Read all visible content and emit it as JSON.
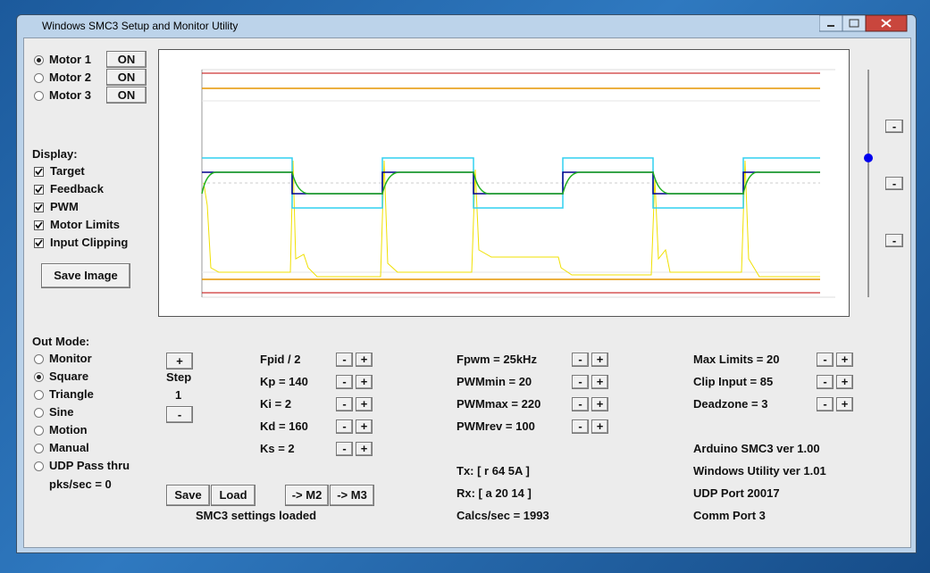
{
  "window": {
    "title": "Windows SMC3 Setup and Monitor Utility"
  },
  "motors": {
    "labels": [
      "Motor 1",
      "Motor 2",
      "Motor 3"
    ],
    "button": "ON",
    "selected": 0
  },
  "display": {
    "heading": "Display:",
    "options": [
      "Target",
      "Feedback",
      "PWM",
      "Motor Limits",
      "Input Clipping"
    ],
    "checked": true,
    "save_button": "Save Image"
  },
  "out_mode": {
    "heading": "Out Mode:",
    "options": [
      "Monitor",
      "Square",
      "Triangle",
      "Sine",
      "Motion",
      "Manual",
      "UDP Pass thru"
    ],
    "selected": 1,
    "rate": "pks/sec = 0"
  },
  "step": {
    "label": "Step",
    "value": 1
  },
  "buttons": {
    "dec": "-",
    "inc": "+"
  },
  "pid": [
    "Fpid / 2",
    "Kp = 140",
    "Ki = 2",
    "Kd = 160",
    "Ks = 2"
  ],
  "pwm": [
    "Fpwm = 25kHz",
    "PWMmin = 20",
    "PWMmax = 220",
    "PWMrev = 100"
  ],
  "comm": [
    "Tx: [ r 64 5A ]",
    "Rx: [ a 20 14 ]",
    "Calcs/sec = 1993"
  ],
  "limits": [
    "Max Limits = 20",
    "Clip Input = 85",
    "Deadzone = 3"
  ],
  "info": [
    "Arduino SMC3 ver 1.00",
    "Windows Utility ver 1.01",
    "UDP Port 20017",
    "Comm Port 3"
  ],
  "actions": [
    "Save",
    "Load",
    "-> M2",
    "-> M3"
  ],
  "status": "SMC3 settings loaded"
}
